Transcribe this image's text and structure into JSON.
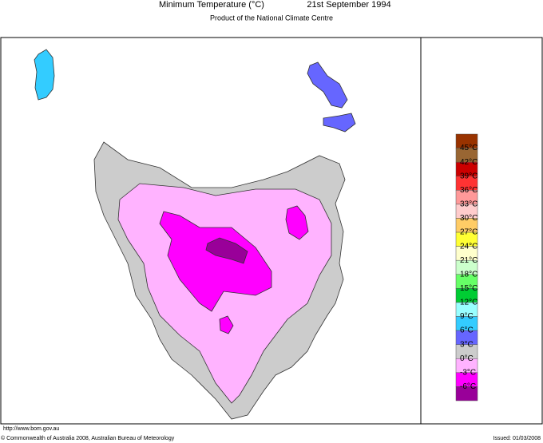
{
  "header": {
    "title": "Minimum Temperature (°C)",
    "date": "21st September 1994",
    "subtitle": "Product of the National Climate Centre"
  },
  "legend": {
    "colors": [
      "#993300",
      "#996633",
      "#cc0000",
      "#ff3333",
      "#ff9999",
      "#ffcccc",
      "#ffcc66",
      "#ffff33",
      "#ffffcc",
      "#ccffcc",
      "#66ff66",
      "#00cc33",
      "#99ffff",
      "#33ccff",
      "#6666ff",
      "#cccccc",
      "#ffb3ff",
      "#ff00ff",
      "#990099"
    ],
    "labels": [
      "45°C",
      "42°C",
      "39°C",
      "36°C",
      "33°C",
      "30°C",
      "27°C",
      "24°C",
      "21°C",
      "18°C",
      "15°C",
      "12°C",
      "9°C",
      "6°C",
      "3°C",
      "0°C",
      "-3°C",
      "-6°C"
    ]
  },
  "footer": {
    "url": "http://www.bom.gov.au",
    "copyright": "© Commonwealth of Australia 2008, Australian Bureau of Meteorology",
    "issued": "Issued: 01/03/2008"
  }
}
